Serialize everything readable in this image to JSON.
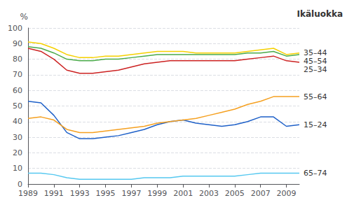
{
  "chart_data": {
    "type": "line",
    "ylabel": "%",
    "annotations": [
      {
        "text": "Ikäluokka"
      }
    ],
    "x": [
      1989,
      1990,
      1991,
      1992,
      1993,
      1994,
      1995,
      1996,
      1997,
      1998,
      1999,
      2000,
      2001,
      2002,
      2003,
      2004,
      2005,
      2006,
      2007,
      2008,
      2009,
      2010
    ],
    "series": [
      {
        "name": "65–74",
        "color": "#55c8f0",
        "values": [
          7,
          7,
          6,
          4,
          3,
          3,
          3,
          3,
          3,
          4,
          4,
          4,
          5,
          5,
          5,
          5,
          5,
          6,
          7,
          7,
          7,
          7
        ]
      },
      {
        "name": "15–24",
        "color": "#1e60c8",
        "values": [
          53,
          52,
          44,
          33,
          29,
          29,
          30,
          31,
          33,
          35,
          38,
          40,
          41,
          39,
          38,
          37,
          38,
          40,
          43,
          43,
          37,
          38
        ]
      },
      {
        "name": "55–64",
        "color": "#f5a020",
        "values": [
          42,
          43,
          41,
          35,
          33,
          33,
          34,
          35,
          36,
          37,
          39,
          40,
          41,
          42,
          44,
          46,
          48,
          51,
          53,
          56,
          56,
          56
        ]
      },
      {
        "name": "25–34",
        "color": "#cc2222",
        "values": [
          87,
          85,
          80,
          73,
          71,
          71,
          72,
          73,
          75,
          77,
          78,
          79,
          79,
          79,
          79,
          79,
          79,
          80,
          81,
          82,
          79,
          78
        ]
      },
      {
        "name": "45–54",
        "color": "#4aaa4a",
        "values": [
          88,
          87,
          84,
          80,
          79,
          79,
          80,
          80,
          81,
          82,
          83,
          83,
          83,
          83,
          83,
          83,
          83,
          84,
          84,
          85,
          82,
          83
        ]
      },
      {
        "name": "35–44",
        "color": "#f5d000",
        "values": [
          91,
          90,
          87,
          83,
          81,
          81,
          82,
          82,
          83,
          84,
          85,
          85,
          85,
          84,
          84,
          84,
          84,
          85,
          86,
          87,
          83,
          84
        ]
      }
    ],
    "xlim": [
      1989,
      2010
    ],
    "xticks": [
      1989,
      1991,
      1993,
      1995,
      1997,
      1999,
      2001,
      2003,
      2005,
      2007,
      2009
    ],
    "ylim": [
      0,
      100
    ],
    "yticks": [
      0,
      10,
      20,
      30,
      40,
      50,
      60,
      70,
      80,
      90,
      100
    ],
    "grid": true
  }
}
